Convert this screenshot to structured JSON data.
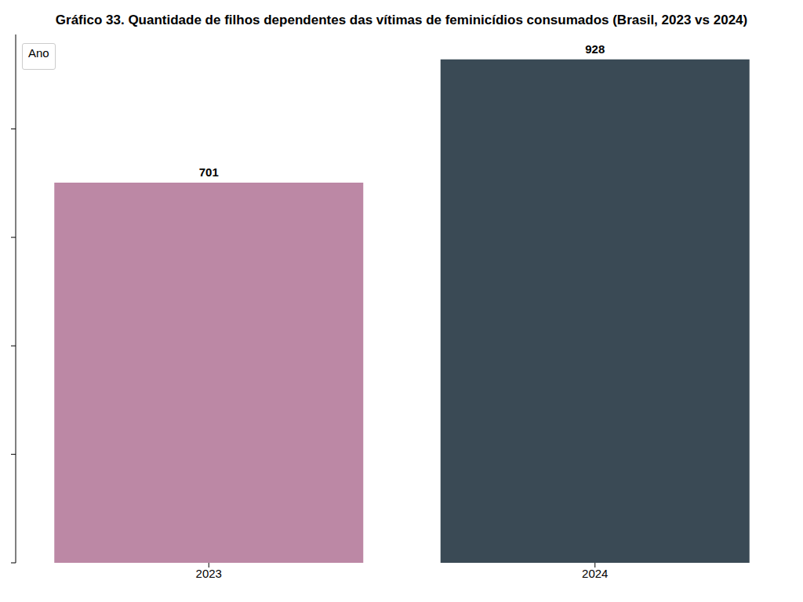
{
  "chart_data": {
    "type": "bar",
    "title": "Gráfico 33. Quantidade de filhos dependentes das vítimas de feminicídios consumados (Brasil, 2023 vs 2024)",
    "categories": [
      "2023",
      "2024"
    ],
    "values": [
      701,
      928
    ],
    "colors": [
      "#bc88a5",
      "#3a4a55"
    ],
    "ylim": [
      0,
      974
    ],
    "yticks": [
      0,
      200,
      400,
      600,
      800
    ],
    "grid": false,
    "data_labels": true,
    "tick_labels": "x",
    "legend": "upper left",
    "legend_title": "Ano"
  }
}
